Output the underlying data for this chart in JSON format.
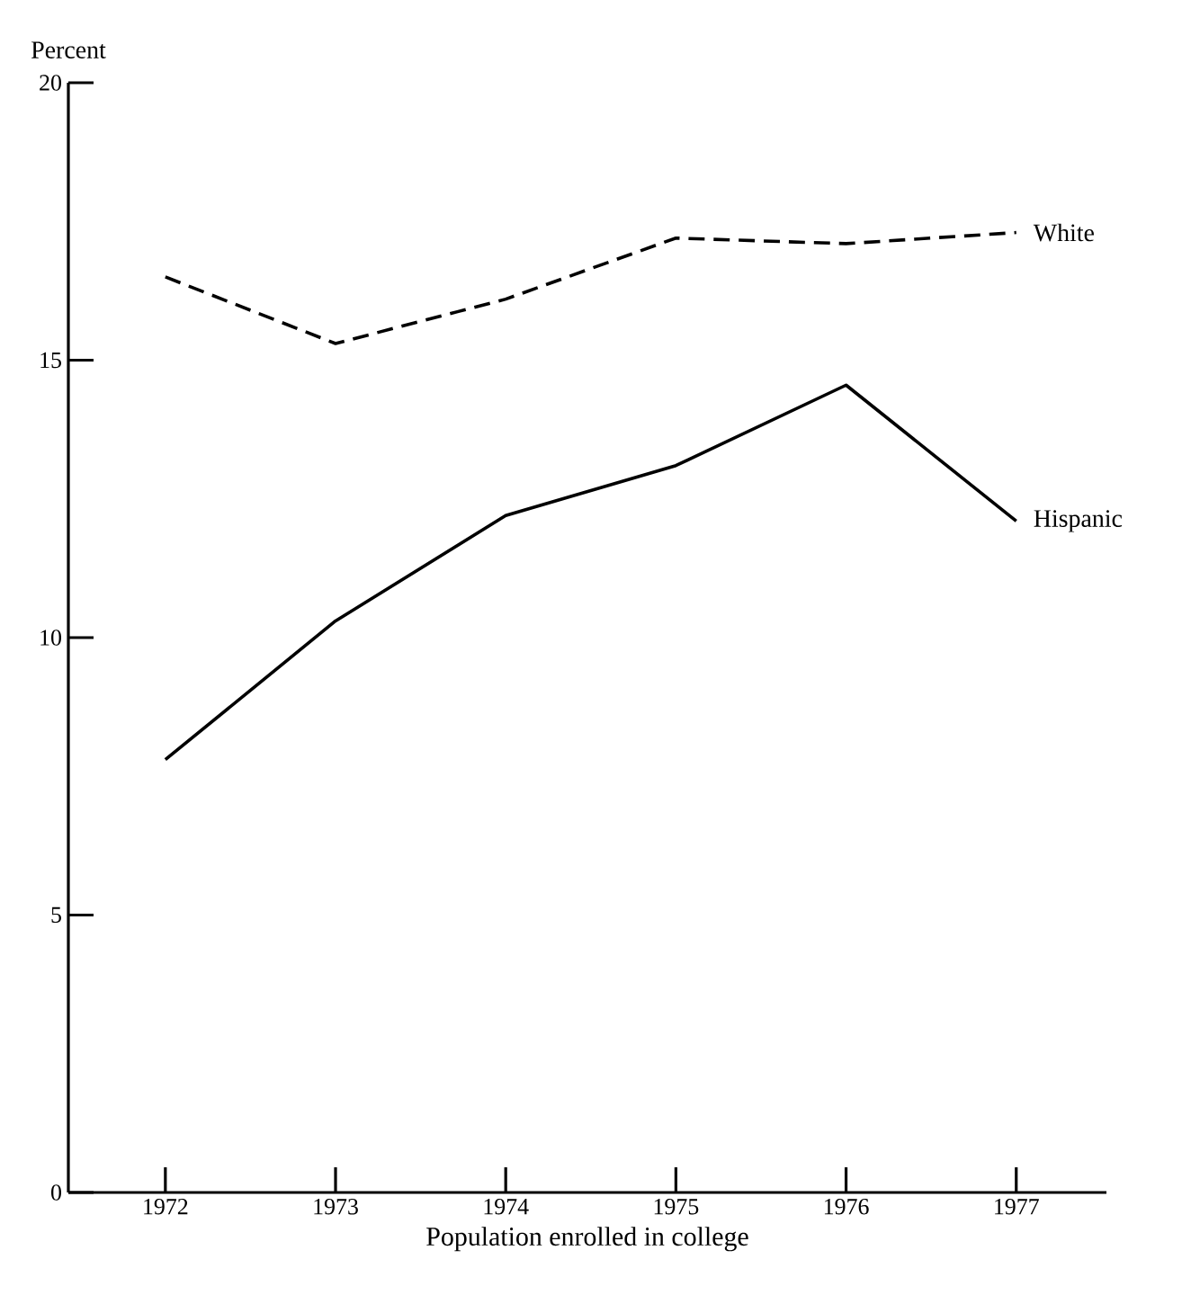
{
  "chart_data": {
    "type": "line",
    "ylabel": "Percent",
    "xlabel": "Population enrolled in college",
    "categories": [
      "1972",
      "1973",
      "1974",
      "1975",
      "1976",
      "1977"
    ],
    "ylim": [
      0,
      20
    ],
    "yticks": [
      0,
      5,
      10,
      15,
      20
    ],
    "grid": false,
    "legend": false,
    "marker": "none",
    "series": [
      {
        "name": "White",
        "color": "#000000",
        "line_style": "dashed",
        "values": [
          16.5,
          15.3,
          16.1,
          17.2,
          17.1,
          17.3
        ]
      },
      {
        "name": "Hispanic",
        "color": "#000000",
        "line_style": "solid",
        "values": [
          7.8,
          10.3,
          12.2,
          13.1,
          14.55,
          12.1
        ]
      }
    ]
  }
}
